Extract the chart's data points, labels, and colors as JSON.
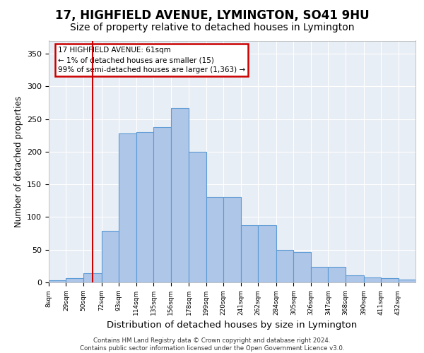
{
  "title1": "17, HIGHFIELD AVENUE, LYMINGTON, SO41 9HU",
  "title2": "Size of property relative to detached houses in Lymington",
  "xlabel": "Distribution of detached houses by size in Lymington",
  "ylabel": "Number of detached properties",
  "bar_values": [
    3,
    7,
    14,
    79,
    228,
    230,
    238,
    267,
    200,
    131,
    131,
    87,
    87,
    50,
    46,
    24,
    24,
    11,
    8,
    7,
    4
  ],
  "x_labels": [
    "8sqm",
    "29sqm",
    "50sqm",
    "72sqm",
    "93sqm",
    "114sqm",
    "135sqm",
    "156sqm",
    "178sqm",
    "199sqm",
    "220sqm",
    "241sqm",
    "262sqm",
    "284sqm",
    "305sqm",
    "326sqm",
    "347sqm",
    "368sqm",
    "390sqm",
    "411sqm",
    "432sqm"
  ],
  "bin_starts": [
    8,
    29,
    50,
    72,
    93,
    114,
    135,
    156,
    178,
    199,
    220,
    241,
    262,
    284,
    305,
    326,
    347,
    368,
    390,
    411,
    432,
    453
  ],
  "bar_color": "#aec6e8",
  "bar_edge_color": "#5b9bd5",
  "vline_x": 61,
  "vline_color": "#cc0000",
  "annotation_box_text": "17 HIGHFIELD AVENUE: 61sqm\n← 1% of detached houses are smaller (15)\n99% of semi-detached houses are larger (1,363) →",
  "ylim": [
    0,
    370
  ],
  "yticks": [
    0,
    50,
    100,
    150,
    200,
    250,
    300,
    350
  ],
  "background_color": "#e8eef5",
  "footer_text": "Contains HM Land Registry data © Crown copyright and database right 2024.\nContains public sector information licensed under the Open Government Licence v3.0.",
  "title1_fontsize": 12,
  "title2_fontsize": 10,
  "ylabel_fontsize": 8.5,
  "xlabel_fontsize": 9.5
}
